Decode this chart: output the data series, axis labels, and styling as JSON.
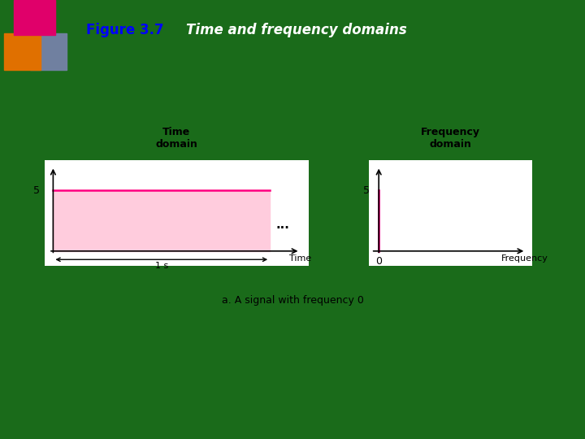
{
  "bg_color": "#1a6b1a",
  "title_text": "Figure 3.7",
  "title_color": "#0000ff",
  "subtitle_text": "    Time and frequency domains",
  "subtitle_color": "#ffffff",
  "box_bg": "#ffffff",
  "signal_color": "#ff0080",
  "signal_fill": "#ffccdd",
  "signal_value": 5,
  "time_domain_title": "Time\ndomain",
  "freq_domain_title": "Frequency\ndomain",
  "caption": "a. A signal with frequency 0",
  "dots_text": "...",
  "time_label": "Time",
  "freq_label": "Frequency",
  "one_s_label": "1 s",
  "zero_label": "0",
  "five_label_time": "5",
  "five_label_freq": "5",
  "icon_pink": "#e0006a",
  "icon_orange": "#e07000",
  "icon_gray": "#7080a0",
  "header_line_color": "#808080"
}
